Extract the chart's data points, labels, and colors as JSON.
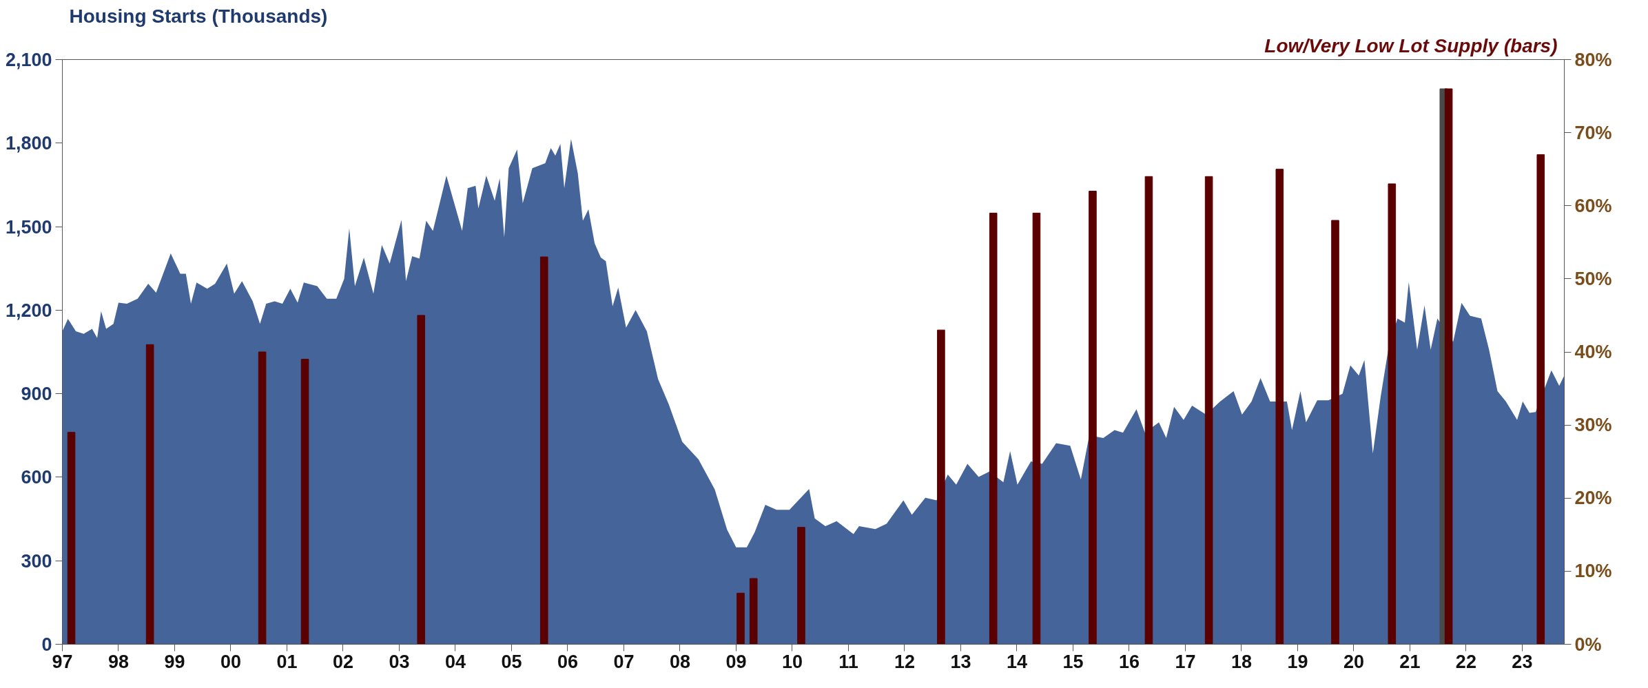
{
  "chart_data": {
    "type": "area",
    "ylabel": "Housing Starts (Thousands)",
    "y2label": "Low/Very Low Lot Supply (bars)",
    "xlim": [
      1997,
      2023.75
    ],
    "xticks": [
      {
        "value": 1997,
        "label": "97"
      },
      {
        "value": 1998,
        "label": "98"
      },
      {
        "value": 1999,
        "label": "99"
      },
      {
        "value": 2000,
        "label": "00"
      },
      {
        "value": 2001,
        "label": "01"
      },
      {
        "value": 2002,
        "label": "02"
      },
      {
        "value": 2003,
        "label": "03"
      },
      {
        "value": 2004,
        "label": "04"
      },
      {
        "value": 2005,
        "label": "05"
      },
      {
        "value": 2006,
        "label": "06"
      },
      {
        "value": 2007,
        "label": "07"
      },
      {
        "value": 2008,
        "label": "08"
      },
      {
        "value": 2009,
        "label": "09"
      },
      {
        "value": 2010,
        "label": "10"
      },
      {
        "value": 2011,
        "label": "11"
      },
      {
        "value": 2012,
        "label": "12"
      },
      {
        "value": 2013,
        "label": "13"
      },
      {
        "value": 2014,
        "label": "14"
      },
      {
        "value": 2015,
        "label": "15"
      },
      {
        "value": 2016,
        "label": "16"
      },
      {
        "value": 2017,
        "label": "17"
      },
      {
        "value": 2018,
        "label": "18"
      },
      {
        "value": 2019,
        "label": "19"
      },
      {
        "value": 2020,
        "label": "20"
      },
      {
        "value": 2021,
        "label": "21"
      },
      {
        "value": 2022,
        "label": "22"
      },
      {
        "value": 2023,
        "label": "23"
      }
    ],
    "ylim": [
      0,
      2100
    ],
    "yticks": [
      0,
      300,
      600,
      900,
      {
        "value": 1200,
        "label": "1,200"
      },
      {
        "value": 1500,
        "label": "1,500"
      },
      {
        "value": 1800,
        "label": "1,800"
      },
      {
        "value": 2100,
        "label": "2,100"
      }
    ],
    "y2lim": [
      0,
      80
    ],
    "y2ticks": [
      {
        "value": 0,
        "label": "0%"
      },
      {
        "value": 10,
        "label": "10%"
      },
      {
        "value": 20,
        "label": "20%"
      },
      {
        "value": 30,
        "label": "30%"
      },
      {
        "value": 40,
        "label": "40%"
      },
      {
        "value": 50,
        "label": "50%"
      },
      {
        "value": 60,
        "label": "60%"
      },
      {
        "value": 70,
        "label": "70%"
      },
      {
        "value": 80,
        "label": "80%"
      }
    ],
    "grid": false,
    "series": [
      {
        "color": "#45649a",
        "x": [
          1997.0,
          1997.1,
          1997.24,
          1997.38,
          1997.53,
          1997.62,
          1997.69,
          1997.78,
          1997.91,
          1998.0,
          1998.15,
          1998.34,
          1998.53,
          1998.67,
          1998.93,
          1999.1,
          1999.2,
          1999.29,
          1999.39,
          1999.58,
          1999.72,
          1999.93,
          2000.06,
          2000.2,
          2000.39,
          2000.52,
          2000.63,
          2000.78,
          2000.92,
          2001.06,
          2001.19,
          2001.3,
          2001.54,
          2001.71,
          2001.88,
          2002.02,
          2002.11,
          2002.21,
          2002.37,
          2002.54,
          2002.69,
          2002.83,
          2003.04,
          2003.12,
          2003.23,
          2003.36,
          2003.48,
          2003.6,
          2003.84,
          2004.12,
          2004.22,
          2004.36,
          2004.41,
          2004.55,
          2004.7,
          2004.79,
          2004.87,
          2004.95,
          2005.1,
          2005.2,
          2005.37,
          2005.6,
          2005.7,
          2005.78,
          2005.87,
          2005.94,
          2006.06,
          2006.18,
          2006.27,
          2006.37,
          2006.48,
          2006.59,
          2006.68,
          2006.8,
          2006.9,
          2007.04,
          2007.21,
          2007.41,
          2007.61,
          2007.8,
          2008.04,
          2008.33,
          2008.62,
          2008.84,
          2009.0,
          2009.19,
          2009.33,
          2009.52,
          2009.72,
          2009.95,
          2010.3,
          2010.4,
          2010.59,
          2010.79,
          2011.09,
          2011.19,
          2011.48,
          2011.68,
          2011.98,
          2012.13,
          2012.37,
          2012.57,
          2012.77,
          2012.92,
          2013.12,
          2013.32,
          2013.51,
          2013.76,
          2013.88,
          2014.01,
          2014.25,
          2014.45,
          2014.7,
          2014.95,
          2015.14,
          2015.29,
          2015.54,
          2015.74,
          2015.89,
          2016.13,
          2016.28,
          2016.53,
          2016.66,
          2016.8,
          2016.97,
          2017.12,
          2017.37,
          2017.62,
          2017.86,
          2018.01,
          2018.18,
          2018.34,
          2018.51,
          2018.81,
          2018.9,
          2019.05,
          2019.15,
          2019.35,
          2019.55,
          2019.8,
          2019.94,
          2020.09,
          2020.19,
          2020.34,
          2020.48,
          2020.63,
          2020.78,
          2020.91,
          2020.98,
          2021.13,
          2021.26,
          2021.37,
          2021.49,
          2021.77,
          2021.92,
          2022.07,
          2022.27,
          2022.41,
          2022.56,
          2022.71,
          2022.91,
          2023.01,
          2023.13,
          2023.24,
          2023.52,
          2023.66,
          2023.75
        ],
        "values": [
          1124,
          1169,
          1124,
          1115,
          1133,
          1100,
          1196,
          1133,
          1151,
          1227,
          1223,
          1241,
          1295,
          1263,
          1404,
          1331,
          1331,
          1223,
          1299,
          1277,
          1295,
          1367,
          1259,
          1304,
          1232,
          1151,
          1223,
          1232,
          1223,
          1277,
          1227,
          1299,
          1286,
          1241,
          1241,
          1313,
          1494,
          1286,
          1389,
          1259,
          1434,
          1367,
          1524,
          1304,
          1394,
          1385,
          1521,
          1485,
          1683,
          1485,
          1638,
          1647,
          1566,
          1683,
          1593,
          1674,
          1461,
          1710,
          1777,
          1584,
          1710,
          1728,
          1782,
          1755,
          1797,
          1638,
          1815,
          1692,
          1521,
          1562,
          1440,
          1389,
          1376,
          1214,
          1281,
          1137,
          1200,
          1124,
          952,
          862,
          727,
          664,
          556,
          411,
          348,
          348,
          402,
          501,
          483,
          483,
          558,
          452,
          424,
          442,
          396,
          424,
          414,
          433,
          517,
          465,
          526,
          517,
          610,
          573,
          648,
          601,
          620,
          582,
          694,
          573,
          657,
          648,
          722,
          713,
          592,
          750,
          741,
          769,
          760,
          844,
          760,
          797,
          741,
          853,
          806,
          857,
          825,
          872,
          909,
          825,
          872,
          956,
          872,
          872,
          769,
          909,
          797,
          876,
          876,
          900,
          1002,
          965,
          1021,
          685,
          890,
          1077,
          1170,
          1155,
          1301,
          1058,
          1217,
          1058,
          1170,
          1086,
          1226,
          1180,
          1170,
          1058,
          909,
          872,
          806,
          872,
          831,
          834,
          984,
          928,
          965
        ]
      },
      {
        "type": "bar",
        "axis": "y2",
        "x": [
          1997.16,
          1998.56,
          2000.56,
          2001.32,
          2003.39,
          2005.58,
          2009.08,
          2009.31,
          2010.16,
          2012.65,
          2013.58,
          2014.35,
          2015.35,
          2016.35,
          2017.42,
          2018.68,
          2019.67,
          2020.68,
          2021.6,
          2021.69,
          2023.33
        ],
        "values": [
          29,
          41,
          40,
          39,
          45,
          53,
          7,
          9,
          16,
          43,
          59,
          59,
          62,
          64,
          64,
          65,
          58,
          63,
          76,
          76,
          67
        ],
        "colors": [
          "#5a0000",
          "#5a0000",
          "#5a0000",
          "#5a0000",
          "#5a0000",
          "#5a0000",
          "#5a0000",
          "#5a0000",
          "#5a0000",
          "#5a0000",
          "#5a0000",
          "#5a0000",
          "#5a0000",
          "#5a0000",
          "#5a0000",
          "#5a0000",
          "#5a0000",
          "#5a0000",
          "#4a4a4a",
          "#5a0000",
          "#5a0000"
        ]
      }
    ]
  }
}
